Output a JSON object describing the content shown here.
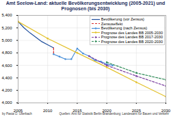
{
  "chart_data": {
    "type": "line",
    "title": "Amt Seelow-Land: aktuelle Bevölkerungsentwicklung (2005-2021) und Prognosen (bis 2030)",
    "author": "by Pasta O. Ullerbach",
    "source": "Quellen: Amt für Statistik Berlin-Brandenburg; Landesamt für Bauen und Verkehr",
    "xlim": [
      2005,
      2030
    ],
    "xticks": [
      2005,
      2010,
      2015,
      2020,
      2025,
      2030
    ],
    "ylim": [
      4000,
      5400
    ],
    "yticks": [
      {
        "value": 4000,
        "label": "4,000"
      },
      {
        "value": 4200,
        "label": "4,200"
      },
      {
        "value": 4400,
        "label": "4,400"
      },
      {
        "value": 4600,
        "label": "4,600"
      },
      {
        "value": 4800,
        "label": "4,800"
      },
      {
        "value": 5000,
        "label": "5,000"
      },
      {
        "value": 5200,
        "label": "5,200"
      },
      {
        "value": 5400,
        "label": "5,400"
      }
    ],
    "grid": true,
    "legend": "upper right",
    "series": [
      {
        "name": "Bevölkerung (vor Zensus)",
        "color": "#1f4e9c",
        "line_style": "solid",
        "x": [
          2005,
          2006,
          2007,
          2008,
          2009,
          2010,
          2011
        ],
        "values": [
          5300,
          5200,
          5120,
          5050,
          4980,
          4930,
          4880
        ]
      },
      {
        "name": "Zensuseffekt",
        "color": "#d62728",
        "line_style": "dashed",
        "x": [
          2011,
          2011
        ],
        "values": [
          4880,
          4780
        ]
      },
      {
        "name": "Bevölkerung (nach Zensus)",
        "color": "#4a90d9",
        "line_style": "solid",
        "marker": "circle",
        "x": [
          2011,
          2012,
          2013,
          2014,
          2015,
          2016,
          2017,
          2018,
          2019,
          2020,
          2021
        ],
        "values": [
          4780,
          4740,
          4700,
          4700,
          4870,
          4790,
          4750,
          4680,
          4660,
          4620,
          4600
        ]
      },
      {
        "name": "Prognose des Landes BB 2005-2030",
        "color": "#e3c12b",
        "line_style": "solid",
        "marker": "circle",
        "x": [
          2005,
          2010,
          2015,
          2020,
          2025,
          2030
        ],
        "values": [
          5300,
          5030,
          4800,
          4570,
          4330,
          4100
        ]
      },
      {
        "name": "Prognose des Landes BB 2017-2030",
        "color": "#7b3fa0",
        "line_style": "dashed",
        "marker": "circle",
        "x": [
          2017,
          2020,
          2025,
          2030
        ],
        "values": [
          4750,
          4600,
          4430,
          4270
        ]
      },
      {
        "name": "Prognose des Landes BB 2020-2030",
        "color": "#2e8b57",
        "line_style": "dashed",
        "marker": "circle",
        "x": [
          2020,
          2025,
          2030
        ],
        "values": [
          4650,
          4480,
          4370
        ]
      }
    ]
  }
}
